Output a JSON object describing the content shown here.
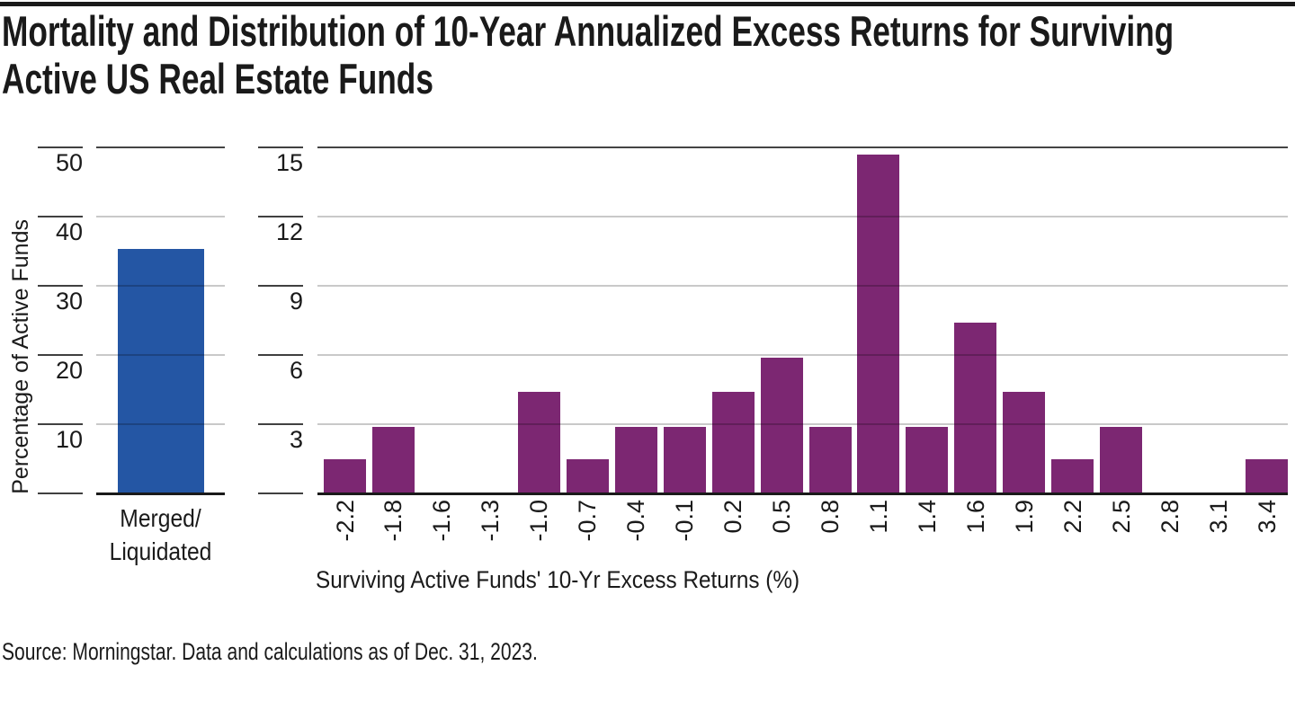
{
  "header": {
    "title_line1": "Mortality and Distribution of 10-Year Annualized Excess Returns for Surviving",
    "title_line2": "Active US Real Estate Funds"
  },
  "footer": {
    "source": "Source: Morningstar. Data and calculations as of Dec. 31, 2023."
  },
  "colors": {
    "mortality_bar": "#2456A4",
    "distribution_bar": "#7C2772",
    "grid_light": "#C9C9C9",
    "axis_dark": "#444444",
    "baseline": "#1A1A1A",
    "text": "#1A1A1A"
  },
  "chart_data": [
    {
      "type": "bar",
      "name": "mortality",
      "title": "",
      "categories": [
        "Merged/Liquidated"
      ],
      "category_label_lines": [
        "Merged/",
        "Liquidated"
      ],
      "values": [
        35.3
      ],
      "ylabel": "Percentage of Active Funds",
      "yticks": [
        10,
        20,
        30,
        40,
        50
      ],
      "ylim": [
        0,
        50
      ],
      "grid": true,
      "legend": "none",
      "bar_color": "#2456A4"
    },
    {
      "type": "bar",
      "name": "distribution-histogram",
      "title": "",
      "categories": [
        "-2.2",
        "-1.8",
        "-1.6",
        "-1.3",
        "-1.0",
        "-0.7",
        "-0.4",
        "-0.1",
        "0.2",
        "0.5",
        "0.8",
        "1.1",
        "1.4",
        "1.6",
        "1.9",
        "2.2",
        "2.5",
        "2.8",
        "3.1",
        "3.4"
      ],
      "values": [
        1.5,
        2.9,
        0,
        0,
        4.4,
        1.5,
        2.9,
        2.9,
        4.4,
        5.9,
        2.9,
        14.7,
        2.9,
        7.4,
        4.4,
        1.5,
        2.9,
        0,
        0,
        1.5
      ],
      "xlabel": "Surviving Active Funds' 10-Yr Excess Returns (%)",
      "ylabel": "Percentage of Active Funds",
      "yticks": [
        3,
        6,
        9,
        12,
        15
      ],
      "ylim": [
        0,
        15
      ],
      "grid": true,
      "legend": "none",
      "bar_color": "#7C2772"
    }
  ]
}
